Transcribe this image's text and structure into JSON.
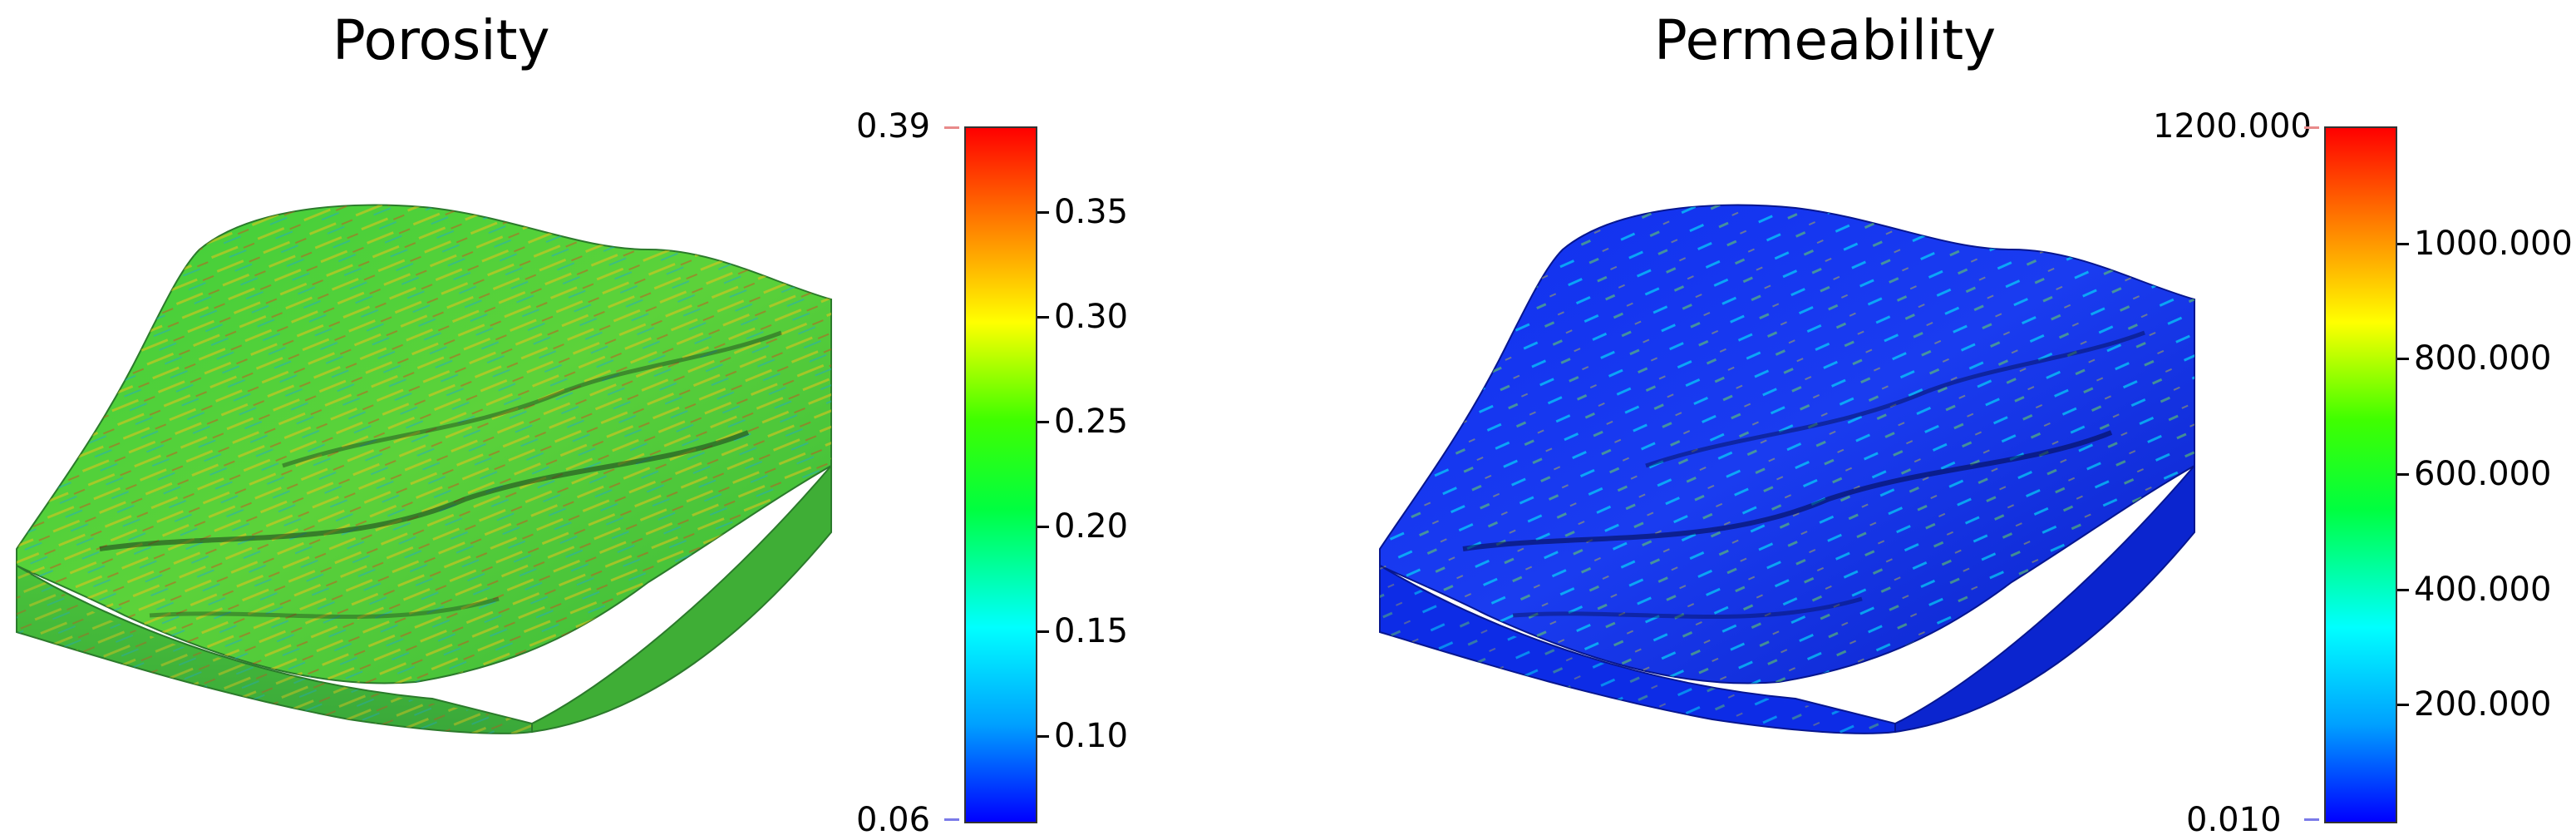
{
  "panels": [
    {
      "title": "Porosity",
      "colorbar": {
        "max_label": "0.39",
        "min_label": "0.06",
        "ticks": [
          "0.35",
          "0.30",
          "0.25",
          "0.20",
          "0.15",
          "0.10"
        ],
        "tick_values": [
          0.35,
          0.3,
          0.25,
          0.2,
          0.15,
          0.1
        ],
        "range": [
          0.06,
          0.39
        ]
      },
      "surface_tone": "green"
    },
    {
      "title": "Permeability",
      "colorbar": {
        "max_label": "1200.000",
        "min_label": "0.010",
        "ticks": [
          "1000.000",
          "800.000",
          "600.000",
          "400.000",
          "200.000"
        ],
        "tick_values": [
          1000,
          800,
          600,
          400,
          200
        ],
        "range": [
          0.01,
          1200
        ]
      },
      "surface_tone": "blue"
    }
  ],
  "colormap": [
    "#0000ff",
    "#00a0ff",
    "#00ffff",
    "#00ff40",
    "#40ff00",
    "#ffff00",
    "#ff8000",
    "#ff0000"
  ]
}
